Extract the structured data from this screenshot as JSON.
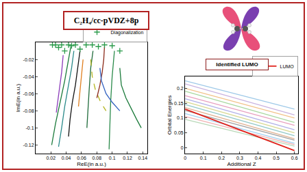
{
  "title_box": "C₂H₄/cc-pVDZ+8p",
  "label_box": "Identified LUMO",
  "chart_data": [
    {
      "type": "line",
      "x_label": "ReE(in a.u.)",
      "y_label": "ImE(in a.u.)",
      "xlim": [
        0.0,
        0.146
      ],
      "xticks": [
        0.02,
        0.04,
        0.06,
        0.08,
        0.1,
        0.12,
        0.14
      ],
      "ylim": [
        -0.13,
        0
      ],
      "yticks": [
        -0.02,
        -0.04,
        -0.06,
        -0.08,
        -0.1,
        -0.12
      ],
      "grid": false,
      "legend": "top right",
      "series": [
        {
          "color": "#1a7a3a",
          "line_style": "solid",
          "x": [
            0.046,
            0.043,
            0.038,
            0.032,
            0.026,
            0.021
          ],
          "values": [
            -0.005,
            -0.02,
            -0.045,
            -0.07,
            -0.095,
            -0.12
          ]
        },
        {
          "color": "#2a8a8a",
          "line_style": "solid",
          "x": [
            0.05,
            0.047,
            0.043,
            0.038,
            0.034,
            0.03
          ],
          "values": [
            -0.01,
            -0.03,
            -0.05,
            -0.075,
            -0.1,
            -0.122
          ]
        },
        {
          "color": "#8a3ab9",
          "line_style": "solid",
          "x": [
            0.036,
            0.034,
            0.031,
            0.029,
            0.027
          ],
          "values": [
            -0.015,
            -0.035,
            -0.055,
            -0.07,
            -0.082
          ]
        },
        {
          "color": "#111111",
          "line_style": "solid",
          "x": [
            0.058,
            0.055,
            0.052,
            0.048,
            0.045,
            0.043
          ],
          "values": [
            -0.01,
            -0.03,
            -0.05,
            -0.07,
            -0.09,
            -0.11
          ]
        },
        {
          "color": "#e08020",
          "line_style": "solid",
          "x": [
            0.062,
            0.06,
            0.058,
            0.056
          ],
          "values": [
            -0.02,
            -0.04,
            -0.06,
            -0.075
          ]
        },
        {
          "color": "#1f6b3a",
          "line_style": "solid",
          "x": [
            0.075,
            0.072,
            0.07,
            0.068,
            0.067
          ],
          "values": [
            -0.01,
            -0.03,
            -0.055,
            -0.08,
            -0.1
          ]
        },
        {
          "color": "#b5b520",
          "line_style": "dashed",
          "x": [
            0.072,
            0.074,
            0.078,
            0.085,
            0.092
          ],
          "values": [
            -0.02,
            -0.04,
            -0.055,
            -0.07,
            -0.08
          ]
        },
        {
          "color": "#8b2a1a",
          "line_style": "solid",
          "x": [
            0.09,
            0.089,
            0.087,
            0.084,
            0.08
          ],
          "values": [
            -0.005,
            -0.02,
            -0.035,
            -0.05,
            -0.065
          ]
        },
        {
          "color": "#2a8a4a",
          "line_style": "solid",
          "x": [
            0.103,
            0.1,
            0.098,
            0.097,
            0.096
          ],
          "values": [
            -0.01,
            -0.04,
            -0.07,
            -0.1,
            -0.125
          ]
        },
        {
          "color": "#1a7a3a",
          "line_style": "solid",
          "x": [
            0.11,
            0.112,
            0.118,
            0.125,
            0.132,
            0.138
          ],
          "values": [
            -0.03,
            -0.05,
            -0.065,
            -0.078,
            -0.09,
            -0.1
          ]
        },
        {
          "color": "#3060c0",
          "line_style": "solid",
          "x": [
            0.084,
            0.086,
            0.092,
            0.1,
            0.11
          ],
          "values": [
            -0.03,
            -0.045,
            -0.06,
            -0.07,
            -0.08
          ]
        },
        {
          "name": "Diagonalization",
          "type": "scatter",
          "marker": "plus",
          "color": "#2a9a4a",
          "x": [
            0.022,
            0.026,
            0.03,
            0.034,
            0.038,
            0.043,
            0.047,
            0.052,
            0.058,
            0.066,
            0.074,
            0.082,
            0.09,
            0.1,
            0.11
          ],
          "values": [
            -0.003,
            -0.003,
            -0.006,
            -0.003,
            -0.01,
            -0.003,
            -0.004,
            -0.003,
            -0.008,
            -0.003,
            -0.003,
            -0.005,
            -0.003,
            -0.004,
            -0.01
          ]
        }
      ]
    },
    {
      "type": "line",
      "x_label": "Additional Z",
      "y_label": "Orbital Energies",
      "xlim": [
        0,
        0.62
      ],
      "xticks": [
        0,
        0.1,
        0.2,
        0.3,
        0.4,
        0.5,
        0.6
      ],
      "ylim": [
        -0.02,
        0.24
      ],
      "yticks": [
        0,
        0.05,
        0.1,
        0.15,
        0.2
      ],
      "grid": false,
      "legend": "top right",
      "series": [
        {
          "color": "#9ec9e8",
          "x": [
            0,
            0.6
          ],
          "values": [
            0.225,
            0.13
          ]
        },
        {
          "color": "#c9b3e0",
          "x": [
            0,
            0.6
          ],
          "values": [
            0.215,
            0.11
          ]
        },
        {
          "color": "#f2c38a",
          "x": [
            0,
            0.6
          ],
          "values": [
            0.2,
            0.1
          ]
        },
        {
          "color": "#a8d8a0",
          "x": [
            0,
            0.6
          ],
          "values": [
            0.19,
            0.085
          ]
        },
        {
          "color": "#e8a0c0",
          "x": [
            0,
            0.6
          ],
          "values": [
            0.175,
            0.075
          ]
        },
        {
          "color": "#b0b0e8",
          "x": [
            0,
            0.6
          ],
          "values": [
            0.165,
            0.06
          ]
        },
        {
          "color": "#d8d890",
          "x": [
            0,
            0.6
          ],
          "values": [
            0.155,
            0.05
          ]
        },
        {
          "color": "#90c8c8",
          "x": [
            0,
            0.6
          ],
          "values": [
            0.145,
            0.04
          ]
        },
        {
          "color": "#e0b090",
          "x": [
            0,
            0.6
          ],
          "values": [
            0.135,
            0.03
          ]
        },
        {
          "color": "#a0a0a0",
          "x": [
            0,
            0.6
          ],
          "values": [
            0.125,
            0.025
          ]
        },
        {
          "color": "#a0d0f0",
          "x": [
            0,
            0.6
          ],
          "values": [
            0.115,
            0.015
          ]
        },
        {
          "color": "#f0b0b0",
          "x": [
            0,
            0.6
          ],
          "values": [
            0.105,
            0.01
          ]
        },
        {
          "color": "#b8d8b8",
          "x": [
            0,
            0.6
          ],
          "values": [
            0.095,
            0.005
          ]
        },
        {
          "name": "LUMO",
          "color": "#e0201a",
          "x": [
            0,
            0.6
          ],
          "values": [
            0.13,
            -0.01
          ]
        }
      ]
    }
  ]
}
